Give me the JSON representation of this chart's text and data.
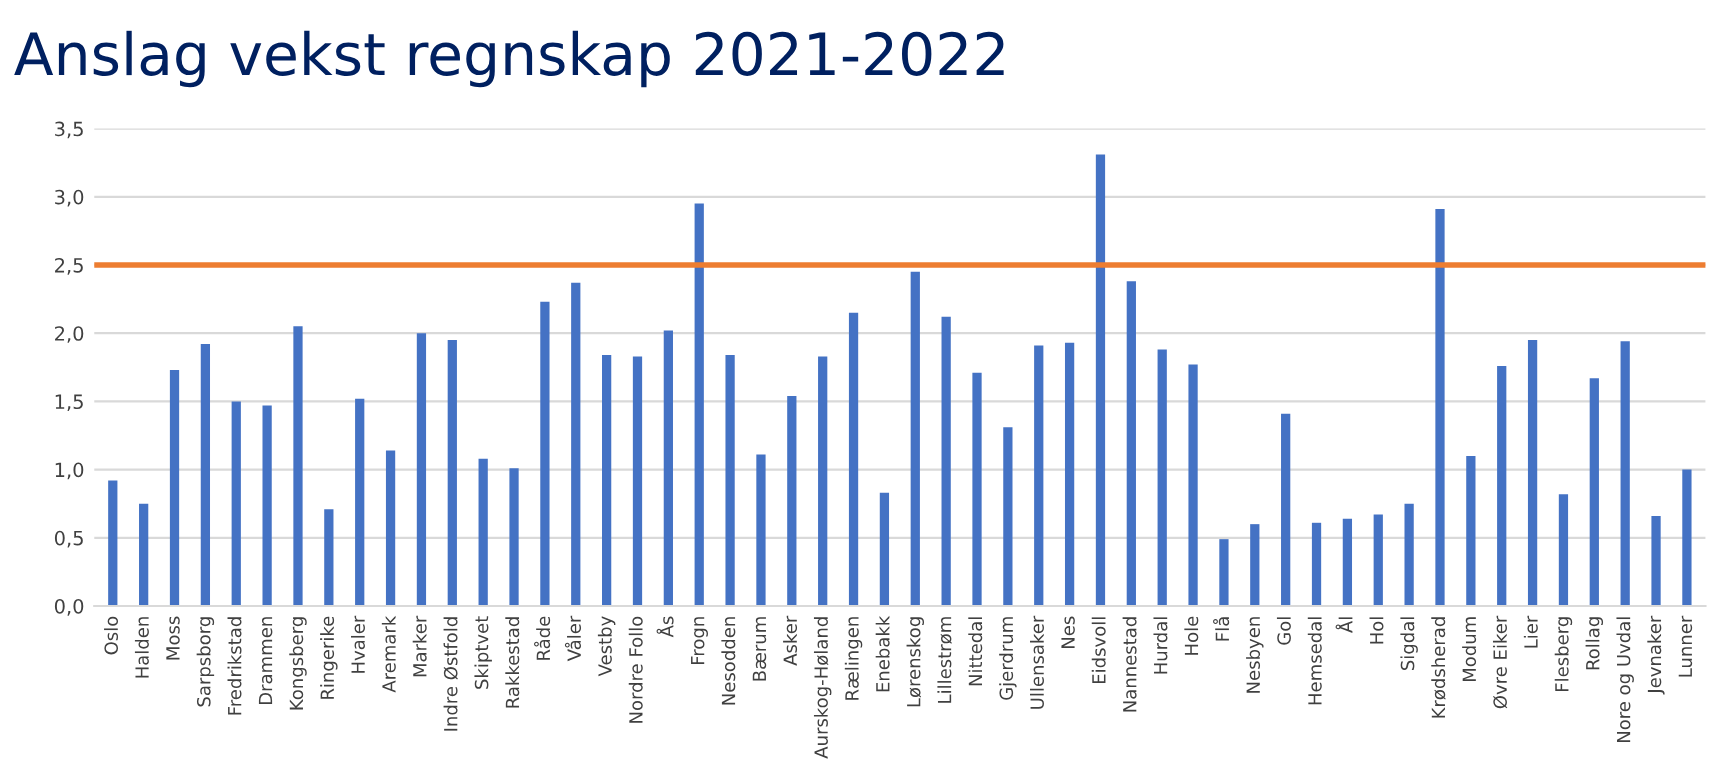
{
  "chart_data": {
    "type": "bar",
    "title": "Anslag vekst regnskap 2021-2022",
    "categories": [
      "Oslo",
      "Halden",
      "Moss",
      "Sarpsborg",
      "Fredrikstad",
      "Drammen",
      "Kongsberg",
      "Ringerike",
      "Hvaler",
      "Aremark",
      "Marker",
      "Indre Østfold",
      "Skiptvet",
      "Rakkestad",
      "Råde",
      "Våler",
      "Vestby",
      "Nordre Follo",
      "Ås",
      "Frogn",
      "Nesodden",
      "Bærum",
      "Asker",
      "Aurskog-Høland",
      "Rælingen",
      "Enebakk",
      "Lørenskog",
      "Lillestrøm",
      "Nittedal",
      "Gjerdrum",
      "Ullensaker",
      "Nes",
      "Eidsvoll",
      "Nannestad",
      "Hurdal",
      "Hole",
      "Flå",
      "Nesbyen",
      "Gol",
      "Hemsedal",
      "Ål",
      "Hol",
      "Sigdal",
      "Krødsherad",
      "Modum",
      "Øvre Eiker",
      "Lier",
      "Flesberg",
      "Rollag",
      "Nore og Uvdal",
      "Jevnaker",
      "Lunner"
    ],
    "values": [
      0.92,
      0.75,
      1.73,
      1.92,
      1.5,
      1.47,
      2.05,
      0.71,
      1.52,
      1.14,
      2.0,
      1.95,
      1.08,
      1.01,
      2.23,
      2.37,
      1.84,
      1.83,
      2.02,
      2.95,
      1.84,
      1.11,
      1.54,
      1.83,
      2.15,
      0.83,
      2.45,
      2.12,
      1.71,
      1.31,
      1.91,
      1.93,
      3.31,
      2.38,
      1.88,
      1.77,
      0.49,
      0.6,
      1.41,
      0.61,
      0.64,
      0.67,
      0.75,
      2.91,
      1.1,
      1.76,
      1.95,
      0.82,
      1.67,
      1.94,
      0.66,
      1.0
    ],
    "color": "#4472c4",
    "ylim": [
      0,
      3.5
    ],
    "yticks": [
      {
        "value": 0,
        "label": "0,0"
      },
      {
        "value": 0.5,
        "label": "0,5"
      },
      {
        "value": 1,
        "label": "1,0"
      },
      {
        "value": 1.5,
        "label": "1,5"
      },
      {
        "value": 2,
        "label": "2,0"
      },
      {
        "value": 2.5,
        "label": "2,5"
      },
      {
        "value": 3,
        "label": "3,0"
      },
      {
        "value": 3.5,
        "label": "3,5"
      }
    ],
    "grid": "y",
    "ref_lines": [
      {
        "axis": "y",
        "value": 2.5,
        "color": "#ed7d31",
        "line_style": "solid"
      }
    ]
  }
}
